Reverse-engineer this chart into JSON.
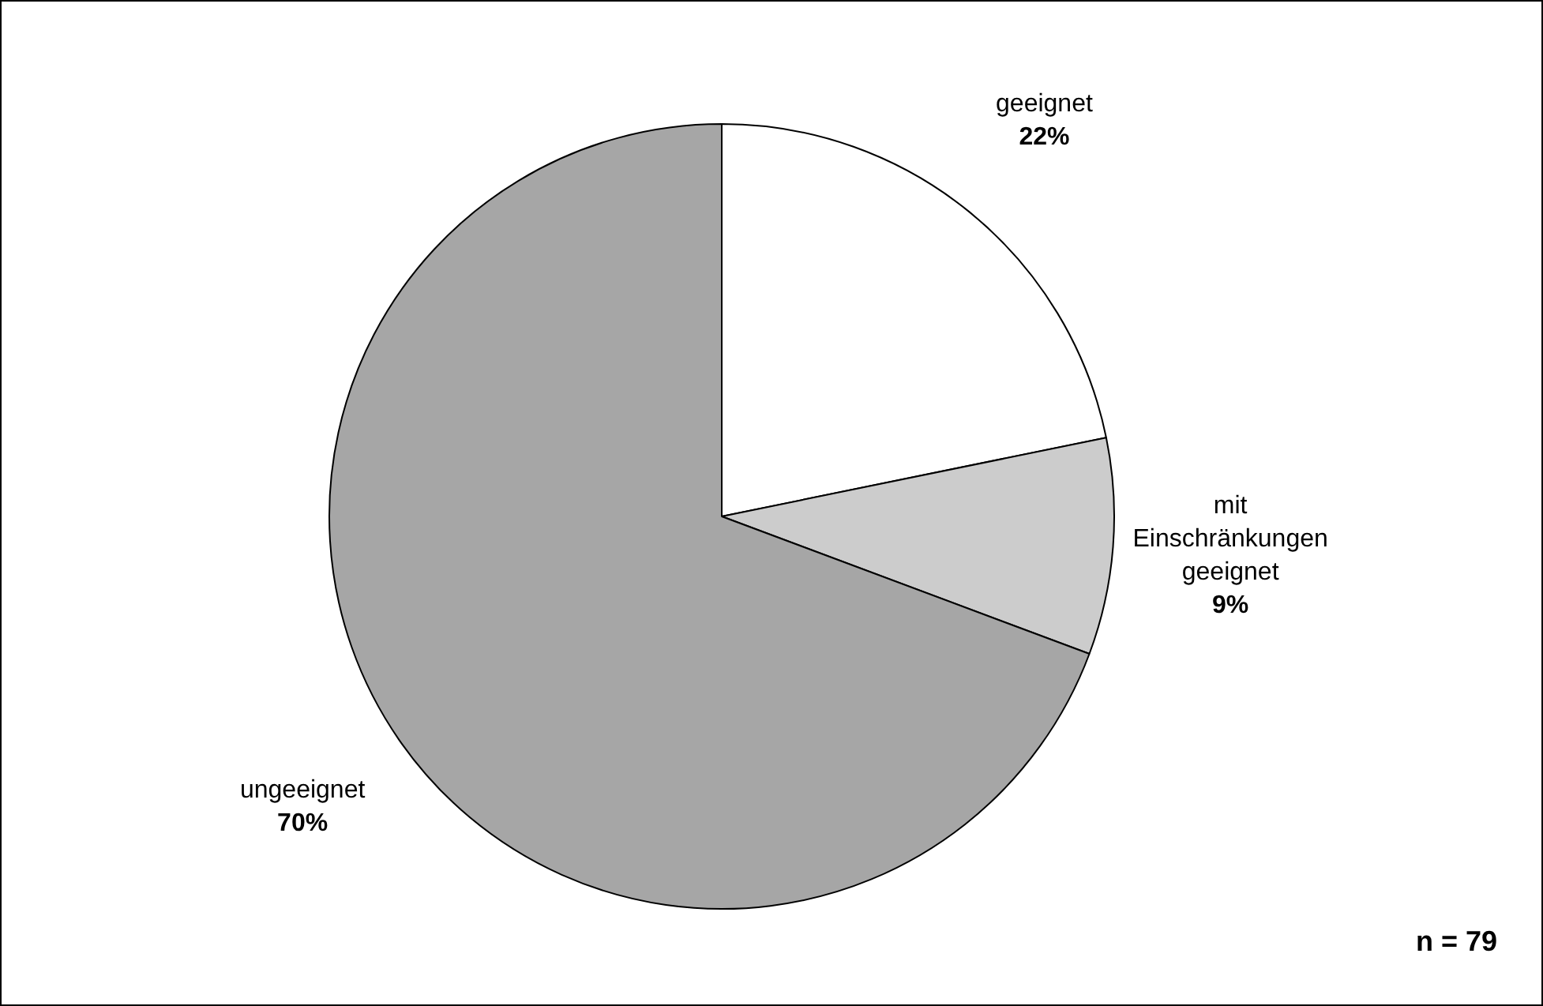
{
  "chart_data": {
    "type": "pie",
    "categories": [
      "geeignet",
      "mit Einschränkungen geeignet",
      "ungeeignet"
    ],
    "values": [
      22,
      9,
      70
    ],
    "value_labels": [
      "22%",
      "9%",
      "70%"
    ],
    "colors": [
      "#ffffff",
      "#cccccc",
      "#a6a6a6"
    ],
    "annotations": [
      "n = 79"
    ],
    "legend": false
  }
}
